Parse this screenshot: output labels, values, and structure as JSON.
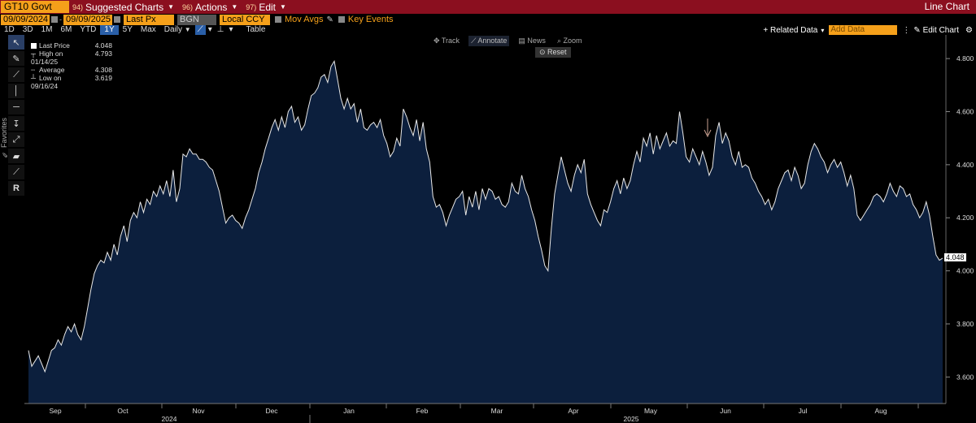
{
  "topbar": {
    "security": "GT10 Govt",
    "menus": [
      {
        "num": "94)",
        "label": "Suggested Charts"
      },
      {
        "num": "96)",
        "label": "Actions"
      },
      {
        "num": "97)",
        "label": "Edit"
      }
    ],
    "chart_type": "Line Chart"
  },
  "fields": {
    "start_date": "09/09/2024",
    "end_date": "09/09/2025",
    "field": "Last Px",
    "source": "BGN",
    "currency": "Local CCY",
    "mov_avgs": "Mov Avgs",
    "key_events": "Key Events"
  },
  "periods": [
    "1D",
    "3D",
    "1M",
    "6M",
    "YTD",
    "1Y",
    "5Y",
    "Max"
  ],
  "active_period": "1Y",
  "frequency": "Daily",
  "table_label": "Table",
  "right_controls": {
    "related_data": "+ Related Data",
    "add_data": "Add Data",
    "edit_chart": "Edit Chart"
  },
  "chart_tools": {
    "track": "Track",
    "annotate": "Annotate",
    "news": "News",
    "zoom": "Zoom",
    "reset": "Reset"
  },
  "favorites_label": "Favorites",
  "legend": [
    {
      "name": "Last Price",
      "value": "4.048"
    },
    {
      "name": "High on 01/14/25",
      "value": "4.793"
    },
    {
      "name": "Average",
      "value": "4.308"
    },
    {
      "name": "Low on 09/16/24",
      "value": "3.619"
    }
  ],
  "colors": {
    "line": "#e8e8e8",
    "fill": "#0c1f3d",
    "accent": "#f5a01a",
    "titlebar": "#8b0f1f"
  },
  "chart_data": {
    "type": "area",
    "ylim": [
      3.5,
      4.88
    ],
    "yticks": [
      3.6,
      3.8,
      4.0,
      4.2,
      4.4,
      4.6,
      4.8
    ],
    "ytick_labels": [
      "3.600",
      "3.800",
      "4.000",
      "4.200",
      "4.400",
      "4.600",
      "4.800"
    ],
    "months": [
      "Sep",
      "Oct",
      "Nov",
      "Dec",
      "Jan",
      "Feb",
      "Mar",
      "Apr",
      "May",
      "Jun",
      "Jul",
      "Aug"
    ],
    "years": [
      "2024",
      "2025"
    ],
    "last_value_label": "4.048",
    "values": [
      3.7,
      3.64,
      3.66,
      3.68,
      3.65,
      3.62,
      3.66,
      3.7,
      3.71,
      3.74,
      3.72,
      3.76,
      3.79,
      3.77,
      3.8,
      3.76,
      3.74,
      3.79,
      3.86,
      3.93,
      3.99,
      4.02,
      4.04,
      4.03,
      4.07,
      4.04,
      4.1,
      4.06,
      4.13,
      4.17,
      4.11,
      4.19,
      4.22,
      4.2,
      4.26,
      4.22,
      4.27,
      4.25,
      4.3,
      4.28,
      4.32,
      4.29,
      4.34,
      4.28,
      4.38,
      4.26,
      4.31,
      4.44,
      4.43,
      4.46,
      4.44,
      4.44,
      4.42,
      4.42,
      4.41,
      4.39,
      4.38,
      4.34,
      4.3,
      4.24,
      4.18,
      4.2,
      4.21,
      4.19,
      4.18,
      4.16,
      4.2,
      4.23,
      4.27,
      4.31,
      4.37,
      4.41,
      4.46,
      4.5,
      4.54,
      4.57,
      4.53,
      4.58,
      4.54,
      4.6,
      4.62,
      4.56,
      4.58,
      4.53,
      4.55,
      4.61,
      4.66,
      4.67,
      4.69,
      4.73,
      4.74,
      4.71,
      4.77,
      4.79,
      4.72,
      4.65,
      4.61,
      4.65,
      4.61,
      4.63,
      4.56,
      4.61,
      4.54,
      4.53,
      4.55,
      4.56,
      4.54,
      4.57,
      4.51,
      4.48,
      4.43,
      4.45,
      4.5,
      4.47,
      4.61,
      4.58,
      4.54,
      4.51,
      4.57,
      4.49,
      4.56,
      4.46,
      4.41,
      4.28,
      4.24,
      4.25,
      4.22,
      4.17,
      4.21,
      4.24,
      4.27,
      4.28,
      4.3,
      4.21,
      4.28,
      4.24,
      4.3,
      4.23,
      4.31,
      4.27,
      4.31,
      4.3,
      4.27,
      4.28,
      4.25,
      4.24,
      4.26,
      4.33,
      4.3,
      4.29,
      4.36,
      4.31,
      4.28,
      4.23,
      4.19,
      4.13,
      4.08,
      4.02,
      4.0,
      4.16,
      4.29,
      4.36,
      4.43,
      4.38,
      4.33,
      4.3,
      4.36,
      4.4,
      4.37,
      4.42,
      4.29,
      4.25,
      4.22,
      4.19,
      4.17,
      4.23,
      4.22,
      4.26,
      4.31,
      4.34,
      4.29,
      4.35,
      4.31,
      4.34,
      4.4,
      4.45,
      4.41,
      4.5,
      4.47,
      4.52,
      4.44,
      4.51,
      4.46,
      4.49,
      4.52,
      4.47,
      4.49,
      4.48,
      4.6,
      4.52,
      4.43,
      4.41,
      4.46,
      4.43,
      4.4,
      4.45,
      4.41,
      4.36,
      4.39,
      4.51,
      4.56,
      4.48,
      4.52,
      4.49,
      4.43,
      4.4,
      4.45,
      4.39,
      4.4,
      4.39,
      4.35,
      4.33,
      4.3,
      4.28,
      4.25,
      4.27,
      4.23,
      4.26,
      4.31,
      4.34,
      4.37,
      4.38,
      4.34,
      4.39,
      4.36,
      4.31,
      4.33,
      4.4,
      4.45,
      4.48,
      4.46,
      4.43,
      4.41,
      4.37,
      4.4,
      4.42,
      4.39,
      4.41,
      4.37,
      4.32,
      4.36,
      4.31,
      4.21,
      4.19,
      4.21,
      4.23,
      4.25,
      4.28,
      4.29,
      4.28,
      4.26,
      4.29,
      4.33,
      4.3,
      4.28,
      4.32,
      4.31,
      4.28,
      4.29,
      4.25,
      4.23,
      4.2,
      4.22,
      4.26,
      4.21,
      4.13,
      4.06,
      4.04,
      4.048
    ]
  }
}
